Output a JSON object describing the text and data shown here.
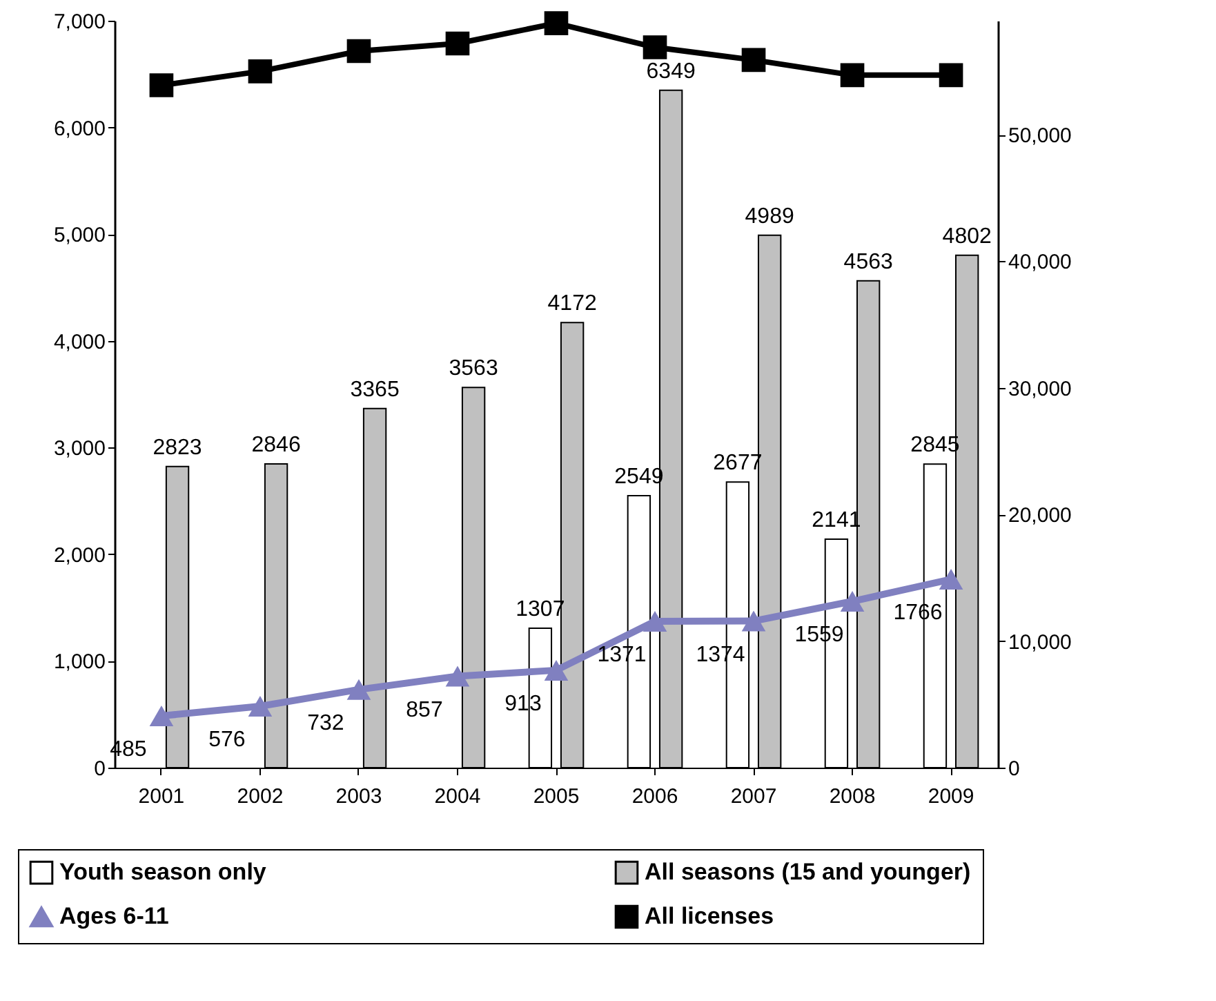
{
  "chart_data": {
    "type": "bar",
    "categories": [
      "2001",
      "2002",
      "2003",
      "2004",
      "2005",
      "2006",
      "2007",
      "2008",
      "2009"
    ],
    "ylim": [
      0,
      7000
    ],
    "yticks": [
      0,
      {
        "value": 1000,
        "label": "1,000"
      },
      {
        "value": 2000,
        "label": "2,000"
      },
      {
        "value": 3000,
        "label": "3,000"
      },
      {
        "value": 4000,
        "label": "4,000"
      },
      {
        "value": 5000,
        "label": "5,000"
      },
      {
        "value": 6000,
        "label": "6,000"
      },
      {
        "value": 7000,
        "label": "7,000"
      }
    ],
    "y2lim": [
      0,
      59000
    ],
    "y2ticks": [
      0,
      {
        "value": 10000,
        "label": "10,000"
      },
      {
        "value": 20000,
        "label": "20,000"
      },
      {
        "value": 30000,
        "label": "30,000"
      },
      {
        "value": 40000,
        "label": "40,000"
      },
      {
        "value": 50000,
        "label": "50,000"
      }
    ],
    "legend": "bottom",
    "grid": false,
    "series": [
      {
        "name": "Youth season only",
        "color": "#ffffff",
        "values": [
          null,
          null,
          null,
          null,
          1307,
          2549,
          2677,
          2141,
          2845
        ],
        "value_labels": [
          null,
          null,
          null,
          null,
          "1307",
          "2549",
          "2677",
          "2141",
          "2845"
        ]
      },
      {
        "name": "All seasons (15 and younger)",
        "color": "#c0c0c0",
        "values": [
          2823,
          2846,
          3365,
          3563,
          4172,
          6349,
          4989,
          4563,
          4802
        ],
        "value_labels": [
          "2823",
          "2846",
          "3365",
          "3563",
          "4172",
          "6349",
          "4989",
          "4563",
          "4802"
        ]
      },
      {
        "name": "Ages 6-11",
        "type": "line",
        "color": "#8080c0",
        "marker": "triangle",
        "values": [
          485,
          576,
          732,
          857,
          913,
          1371,
          1374,
          1559,
          1766
        ],
        "value_labels": [
          "485",
          "576",
          "732",
          "857",
          "913",
          "1371",
          "1374",
          "1559",
          "1766"
        ]
      },
      {
        "name": "All licenses",
        "type": "line",
        "axis": "y2",
        "color": "#000000",
        "marker": "square",
        "values": [
          53900,
          55000,
          56600,
          57200,
          58800,
          56900,
          55900,
          54700,
          54700
        ]
      }
    ]
  }
}
